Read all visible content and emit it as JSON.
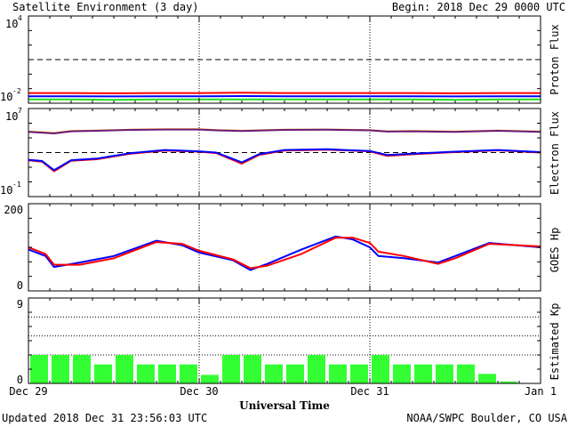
{
  "header": {
    "title": "Satellite Environment (3 day)",
    "begin": "Begin:  2018 Dec 29 0000 UTC"
  },
  "footer": {
    "updated": "Updated 2018 Dec 31 23:56:03 UTC",
    "credit": "NOAA/SWPC Boulder, CO USA"
  },
  "x_axis": {
    "title": "Universal Time",
    "ticks": [
      "Dec 29",
      "Dec 30",
      "Dec 31",
      "Jan 1"
    ],
    "range_days": [
      0,
      3
    ]
  },
  "colors": {
    "red": "#ff0000",
    "blue": "#0000ff",
    "green": "#22dd22",
    "orange": "#ff9900",
    "purple": "#6a1b7a",
    "kp_bar": "#33ff33"
  },
  "chart_data": [
    {
      "type": "line",
      "ylabel": "Proton Flux",
      "y_scale": "log",
      "ylim": [
        0.01,
        10000
      ],
      "ytick_labels": [
        {
          "base": "10",
          "exp": "4"
        },
        {
          "base": "10",
          "exp": "-2"
        }
      ],
      "threshold": 10,
      "x": [
        0,
        0.25,
        0.5,
        0.75,
        1.0,
        1.25,
        1.5,
        1.75,
        2.0,
        2.25,
        2.5,
        2.75,
        3.0
      ],
      "series": [
        {
          "color": "red",
          "values": [
            0.05,
            0.05,
            0.048,
            0.05,
            0.05,
            0.052,
            0.05,
            0.05,
            0.05,
            0.05,
            0.048,
            0.05,
            0.05
          ]
        },
        {
          "color": "blue",
          "values": [
            0.03,
            0.03,
            0.029,
            0.03,
            0.03,
            0.031,
            0.03,
            0.03,
            0.03,
            0.03,
            0.029,
            0.03,
            0.03
          ]
        },
        {
          "color": "green",
          "values": [
            0.018,
            0.018,
            0.017,
            0.018,
            0.018,
            0.018,
            0.018,
            0.018,
            0.018,
            0.018,
            0.017,
            0.018,
            0.018
          ]
        }
      ]
    },
    {
      "type": "line",
      "ylabel": "Electron Flux",
      "y_scale": "log",
      "ylim": [
        0.1,
        10000000
      ],
      "ytick_labels": [
        {
          "base": "10",
          "exp": "7"
        },
        {
          "base": "10",
          "exp": "-1"
        }
      ],
      "threshold": 1000,
      "x": [
        0,
        0.08,
        0.15,
        0.25,
        0.4,
        0.6,
        0.8,
        1.0,
        1.1,
        1.25,
        1.35,
        1.5,
        1.75,
        2.0,
        2.1,
        2.25,
        2.5,
        2.75,
        3.0
      ],
      "series": [
        {
          "color": "orange",
          "values": [
            80000,
            70000,
            60000,
            90000,
            100000,
            120000,
            130000,
            130000,
            110000,
            95000,
            105000,
            120000,
            125000,
            110000,
            85000,
            90000,
            80000,
            100000,
            80000
          ]
        },
        {
          "color": "purple",
          "values": [
            75000,
            65000,
            55000,
            85000,
            95000,
            115000,
            125000,
            125000,
            105000,
            90000,
            100000,
            115000,
            120000,
            105000,
            80000,
            85000,
            75000,
            95000,
            75000
          ]
        },
        {
          "color": "red",
          "values": [
            200,
            150,
            20,
            180,
            250,
            800,
            1500,
            1200,
            900,
            100,
            600,
            1500,
            1800,
            1300,
            500,
            700,
            1100,
            1600,
            1000
          ]
        },
        {
          "color": "blue",
          "values": [
            220,
            170,
            25,
            200,
            280,
            900,
            1700,
            1300,
            1000,
            130,
            700,
            1700,
            2000,
            1400,
            600,
            800,
            1200,
            1700,
            1100
          ]
        }
      ]
    },
    {
      "type": "line",
      "ylabel": "GOES Hp",
      "y_scale": "linear",
      "ylim": [
        0,
        200
      ],
      "ytick_labels": [
        "200",
        "0"
      ],
      "x": [
        0,
        0.1,
        0.15,
        0.3,
        0.5,
        0.75,
        0.9,
        1.0,
        1.2,
        1.3,
        1.4,
        1.6,
        1.8,
        1.9,
        2.0,
        2.05,
        2.2,
        2.4,
        2.5,
        2.7,
        3.0
      ],
      "series": [
        {
          "color": "blue",
          "values": [
            95,
            80,
            55,
            65,
            80,
            115,
            105,
            88,
            70,
            48,
            62,
            95,
            125,
            118,
            100,
            80,
            75,
            65,
            80,
            110,
            100
          ]
        },
        {
          "color": "red",
          "values": [
            100,
            85,
            60,
            60,
            75,
            112,
            108,
            92,
            72,
            52,
            58,
            85,
            122,
            122,
            110,
            90,
            80,
            62,
            75,
            108,
            102
          ]
        }
      ]
    },
    {
      "type": "bar",
      "ylabel": "Estimated Kp",
      "ylim": [
        0,
        9
      ],
      "ytick_labels": [
        "9",
        "0"
      ],
      "bar_width_days": 0.125,
      "values": [
        3,
        3,
        3,
        2,
        3,
        2,
        2,
        2,
        0.9,
        3,
        3,
        2,
        2,
        3,
        2,
        2,
        3,
        2,
        2,
        2,
        2,
        1,
        0.2,
        0
      ]
    }
  ]
}
